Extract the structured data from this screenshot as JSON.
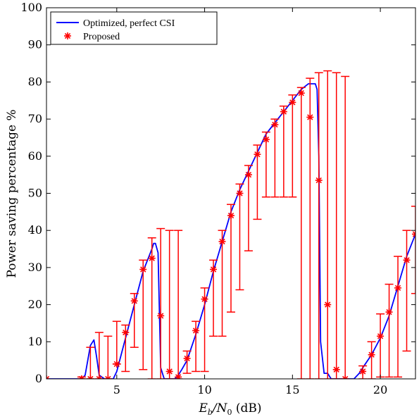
{
  "chart_data": {
    "type": "line",
    "xlabel_main": "E",
    "xlabel_sub": "b",
    "xlabel_slash": "/N",
    "xlabel_sub2": "0",
    "xlabel_unit": " (dB)",
    "ylabel": "Power saving percentage %",
    "xlim": [
      1,
      22
    ],
    "ylim": [
      0,
      100
    ],
    "xticks": [
      5,
      10,
      15,
      20
    ],
    "yticks": [
      0,
      10,
      20,
      30,
      40,
      50,
      60,
      70,
      80,
      90,
      100
    ],
    "grid": false,
    "legend_position": "top-left",
    "legend": [
      {
        "label": "Optimized, perfect CSI",
        "color": "#0000ff"
      },
      {
        "label": "Proposed",
        "color": "#ff0000"
      }
    ],
    "series": [
      {
        "name": "Optimized, perfect CSI",
        "color": "#0000ff",
        "kind": "line",
        "x": [
          1,
          3,
          3.2,
          3.5,
          3.7,
          3.85,
          4.0,
          4.3,
          4.8,
          5.0,
          5.5,
          6.0,
          6.5,
          7.0,
          7.1,
          7.2,
          7.35,
          7.5,
          7.7,
          8.3,
          8.5,
          8.7,
          9.0,
          9.5,
          10.0,
          10.5,
          11.0,
          11.5,
          12.0,
          12.5,
          13.0,
          13.5,
          14.0,
          14.5,
          15.0,
          15.5,
          15.9,
          16.3,
          16.4,
          16.5,
          16.6,
          16.8,
          17.0,
          17.2,
          18.5,
          18.8,
          19.0,
          19.5,
          20.0,
          20.5,
          21.0,
          21.5,
          22.0
        ],
        "y": [
          0,
          0,
          1,
          9,
          10.5,
          6,
          1,
          0,
          0,
          2,
          11,
          20,
          29,
          35,
          36.5,
          36.5,
          34,
          3,
          0,
          0,
          1,
          2.5,
          5,
          12,
          20,
          29,
          37,
          45,
          51,
          56,
          61,
          66,
          69,
          72,
          75,
          78,
          79.5,
          79.5,
          78,
          60,
          10,
          1.5,
          1.5,
          0,
          0,
          1.5,
          3,
          6.5,
          11,
          17,
          25,
          33,
          39
        ]
      },
      {
        "name": "Proposed",
        "color": "#ff0000",
        "kind": "errorbar",
        "points": [
          {
            "x": 1.0,
            "y": 0,
            "hi": 0
          },
          {
            "x": 3.0,
            "y": 0,
            "hi": 0.5
          },
          {
            "x": 3.5,
            "y": 0,
            "hi": 8.5
          },
          {
            "x": 4.0,
            "y": 0,
            "hi": 12.5
          },
          {
            "x": 4.5,
            "y": 0,
            "hi": 11.5
          },
          {
            "x": 5.0,
            "y": 4,
            "hi": 15.5
          },
          {
            "x": 5.5,
            "y": 12.5,
            "lo": 2,
            "hi": 14.5
          },
          {
            "x": 6.0,
            "y": 21,
            "lo": 8.5,
            "hi": 23
          },
          {
            "x": 6.5,
            "y": 29.5,
            "lo": 2.5,
            "hi": 32
          },
          {
            "x": 7.0,
            "y": 32.5,
            "lo": 0,
            "hi": 38
          },
          {
            "x": 7.5,
            "y": 17,
            "lo": 0,
            "hi": 40.5
          },
          {
            "x": 8.0,
            "y": 2,
            "lo": 0,
            "hi": 40
          },
          {
            "x": 8.5,
            "y": 0.5,
            "lo": 0,
            "hi": 40
          },
          {
            "x": 9.0,
            "y": 5.5,
            "lo": 1.5,
            "hi": 7.5
          },
          {
            "x": 9.5,
            "y": 13,
            "lo": 2,
            "hi": 15.5
          },
          {
            "x": 10.0,
            "y": 21.5,
            "lo": 2,
            "hi": 24.5
          },
          {
            "x": 10.5,
            "y": 29.5,
            "lo": 11.5,
            "hi": 32
          },
          {
            "x": 11.0,
            "y": 37,
            "lo": 11.5,
            "hi": 40
          },
          {
            "x": 11.5,
            "y": 44,
            "lo": 18,
            "hi": 47
          },
          {
            "x": 12.0,
            "y": 50,
            "lo": 24,
            "hi": 52.5
          },
          {
            "x": 12.5,
            "y": 55,
            "lo": 34.5,
            "hi": 57.5
          },
          {
            "x": 13.0,
            "y": 60.5,
            "lo": 43,
            "hi": 63
          },
          {
            "x": 13.5,
            "y": 64.5,
            "lo": 49,
            "hi": 66.5
          },
          {
            "x": 14.0,
            "y": 68.5,
            "lo": 49,
            "hi": 70
          },
          {
            "x": 14.5,
            "y": 72,
            "lo": 49,
            "hi": 73.5
          },
          {
            "x": 15.0,
            "y": 74.5,
            "lo": 49,
            "hi": 76.5
          },
          {
            "x": 15.5,
            "y": 77,
            "lo": 0,
            "hi": 78.5
          },
          {
            "x": 16.0,
            "y": 70.5,
            "lo": 0,
            "hi": 81
          },
          {
            "x": 16.5,
            "y": 53.5,
            "lo": 0,
            "hi": 82.5
          },
          {
            "x": 17.0,
            "y": 20,
            "lo": 0,
            "hi": 83
          },
          {
            "x": 17.5,
            "y": 2.5,
            "lo": 0,
            "hi": 82.5
          },
          {
            "x": 18.0,
            "y": 0,
            "lo": 0,
            "hi": 81.5
          },
          {
            "x": 19.0,
            "y": 2,
            "lo": 0,
            "hi": 3.5
          },
          {
            "x": 19.5,
            "y": 6.5,
            "lo": 0,
            "hi": 10
          },
          {
            "x": 20.0,
            "y": 11.5,
            "lo": 0.5,
            "hi": 17.5
          },
          {
            "x": 20.5,
            "y": 18,
            "lo": 0.5,
            "hi": 25.5
          },
          {
            "x": 21.0,
            "y": 24.5,
            "lo": 0.5,
            "hi": 33
          },
          {
            "x": 21.5,
            "y": 32,
            "lo": 7.5,
            "hi": 40
          },
          {
            "x": 22.0,
            "y": 39,
            "lo": 23,
            "hi": 46.5
          }
        ]
      }
    ]
  }
}
